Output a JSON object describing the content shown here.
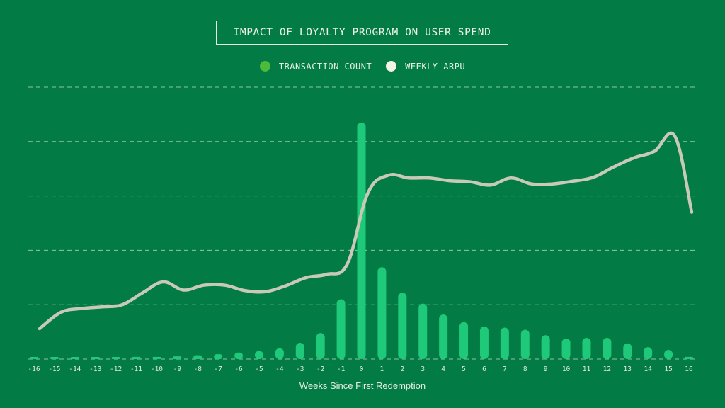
{
  "chart_data": {
    "type": "bar+line",
    "title": "IMPACT OF LOYALTY PROGRAM ON USER SPEND",
    "xlabel": "Weeks Since First Redemption",
    "ylabel": "",
    "x": [
      -16,
      -15,
      -14,
      -13,
      -12,
      -11,
      -10,
      -9,
      -8,
      -7,
      -6,
      -5,
      -4,
      -3,
      -2,
      -1,
      0,
      1,
      2,
      3,
      4,
      5,
      6,
      7,
      8,
      9,
      10,
      11,
      12,
      13,
      14,
      15,
      16
    ],
    "x_tick_labels": [
      "-16",
      "-15",
      "-14",
      "-13",
      "-12",
      "-11",
      "-10",
      "-9",
      "-8",
      "-7",
      "-6",
      "-5",
      "-4",
      "-3",
      "-2",
      "-1",
      "0",
      "1",
      "2",
      "3",
      "4",
      "5",
      "6",
      "7",
      "8",
      "9",
      "10",
      "11",
      "12",
      "13",
      "14",
      "15",
      "16"
    ],
    "ylim": [
      0,
      5
    ],
    "grid": true,
    "legend_position": "top-center",
    "series": [
      {
        "name": "TRANSACTION COUNT",
        "type": "bar",
        "color": "#1fc97a",
        "legend_color": "#4cbb3a",
        "values": [
          0.01,
          0.02,
          0.02,
          0.02,
          0.03,
          0.04,
          0.04,
          0.05,
          0.07,
          0.09,
          0.12,
          0.15,
          0.2,
          0.3,
          0.48,
          1.1,
          4.35,
          1.69,
          1.22,
          1.02,
          0.82,
          0.68,
          0.6,
          0.58,
          0.54,
          0.44,
          0.38,
          0.39,
          0.39,
          0.29,
          0.22,
          0.17,
          0.04
        ]
      },
      {
        "name": "WEEKLY ARPU",
        "type": "line",
        "color": "#c8c9b6",
        "legend_color": "#f3f3e6",
        "values": [
          0.56,
          0.86,
          0.93,
          0.96,
          1.0,
          1.22,
          1.42,
          1.27,
          1.36,
          1.36,
          1.26,
          1.24,
          1.35,
          1.5,
          1.56,
          1.75,
          3.05,
          3.38,
          3.33,
          3.33,
          3.28,
          3.26,
          3.2,
          3.33,
          3.22,
          3.22,
          3.27,
          3.34,
          3.53,
          3.7,
          3.82,
          4.1,
          2.7
        ]
      }
    ]
  }
}
